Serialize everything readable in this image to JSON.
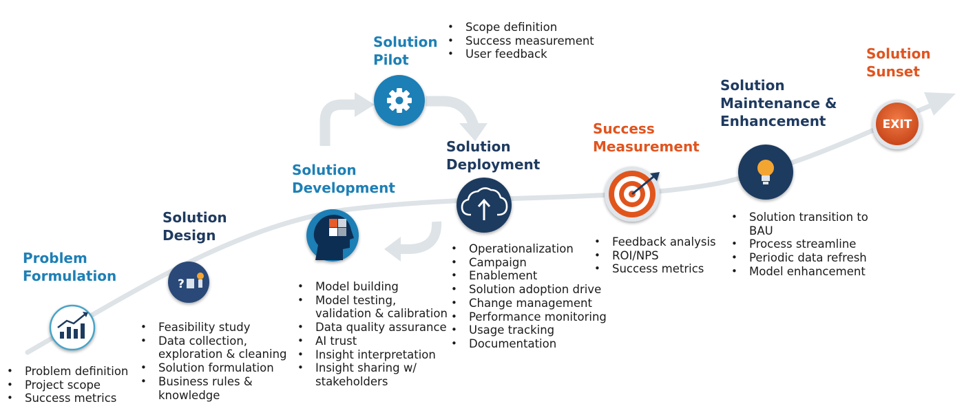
{
  "colors": {
    "navy": "#1f3a5f",
    "teal": "#1e7fb5",
    "orange": "#e0541f",
    "path": "#dde3e7"
  },
  "stages": [
    {
      "key": "problem",
      "title": [
        "Problem",
        "Formulation"
      ],
      "title_color": "teal",
      "icon": "chart-growth-icon",
      "items": [
        "Problem definition",
        "Project scope",
        "Success metrics"
      ]
    },
    {
      "key": "design",
      "title": [
        "Solution",
        "Design"
      ],
      "title_color": "navy",
      "icon": "idea-puzzle-icon",
      "items": [
        "Feasibility study",
        "Data collection,",
        "exploration & cleaning",
        "Solution formulation",
        "Business rules &",
        "knowledge"
      ]
    },
    {
      "key": "development",
      "title": [
        "Solution",
        "Development"
      ],
      "title_color": "teal",
      "icon": "head-puzzle-icon",
      "items": [
        "Model building",
        "Model testing,",
        "validation & calibration",
        "Data quality assurance",
        "AI trust",
        "Insight interpretation",
        "Insight sharing w/",
        "stakeholders"
      ]
    },
    {
      "key": "pilot",
      "title": [
        "Solution",
        "Pilot"
      ],
      "title_color": "teal",
      "icon": "gear-icon",
      "items": [
        "Scope definition",
        "Success measurement",
        "User feedback"
      ]
    },
    {
      "key": "deployment",
      "title": [
        "Solution",
        "Deployment"
      ],
      "title_color": "navy",
      "icon": "cloud-upload-icon",
      "items": [
        "Operationalization",
        "Campaign",
        "Enablement",
        "Solution adoption drive",
        "Change management",
        "Performance monitoring",
        "Usage tracking",
        "Documentation"
      ]
    },
    {
      "key": "measurement",
      "title": [
        "Success",
        "Measurement"
      ],
      "title_color": "orange",
      "icon": "target-icon",
      "items": [
        "Feedback analysis",
        "ROI/NPS",
        "Success metrics"
      ]
    },
    {
      "key": "maintenance",
      "title": [
        "Solution",
        "Maintenance &",
        "Enhancement"
      ],
      "title_color": "navy",
      "icon": "lightbulb-icon",
      "items": [
        "Solution transition to",
        "BAU",
        "Process streamline",
        "Periodic data refresh",
        "Model enhancement"
      ]
    },
    {
      "key": "sunset",
      "title": [
        "Solution",
        "Sunset"
      ],
      "title_color": "orange",
      "icon": "exit-icon",
      "icon_text": "EXIT",
      "items": []
    }
  ]
}
